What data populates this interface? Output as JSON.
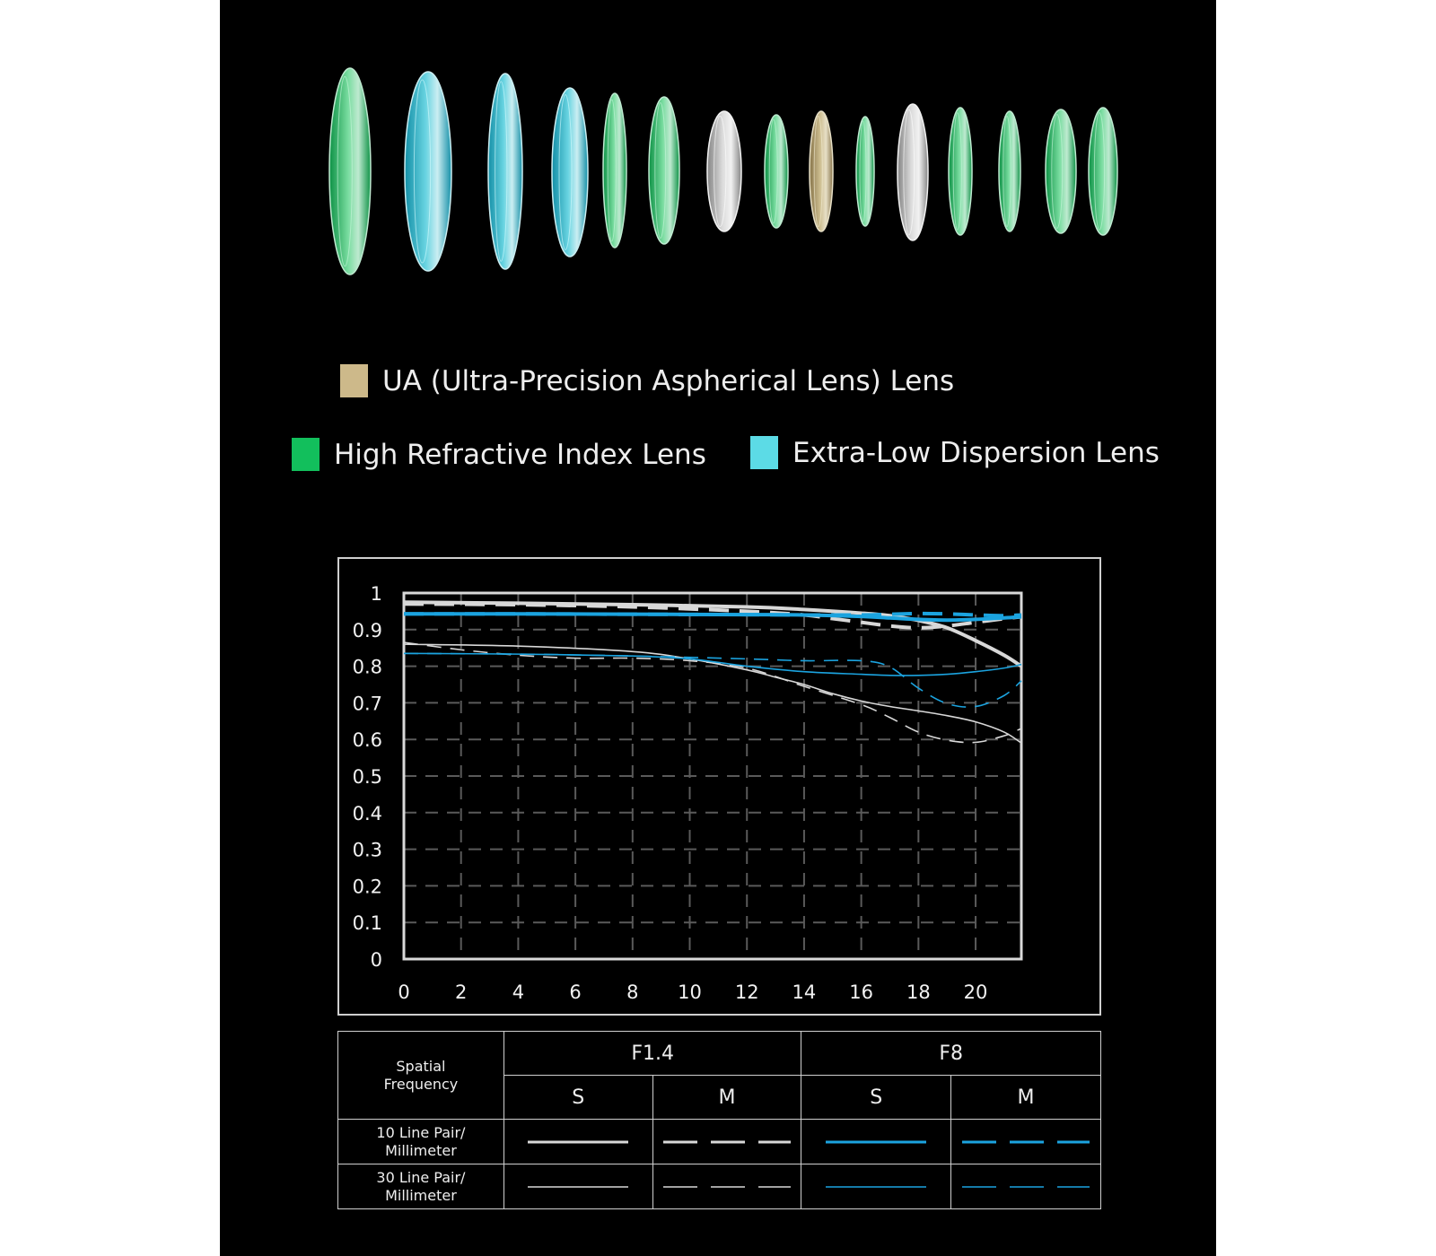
{
  "legend": {
    "ua": {
      "label": "UA (Ultra-Precision Aspherical Lens) Lens",
      "color": "#cdb98a"
    },
    "high_refractive": {
      "label": "High Refractive Index Lens",
      "color": "#12bf5c"
    },
    "extra_low": {
      "label": "Extra-Low Dispersion Lens",
      "color": "#5cdbe6"
    }
  },
  "lens_elements": [
    "high-refractive",
    "extra-low-dispersion",
    "extra-low-dispersion",
    "extra-low-dispersion",
    "high-refractive",
    "high-refractive",
    "standard",
    "high-refractive",
    "ua",
    "high-refractive",
    "standard",
    "high-refractive",
    "high-refractive",
    "high-refractive",
    "high-refractive"
  ],
  "chart_data": {
    "type": "line",
    "xlim": [
      0,
      21.6
    ],
    "ylim": [
      0,
      1
    ],
    "x_ticks": [
      "0",
      "2",
      "4",
      "6",
      "8",
      "10",
      "12",
      "14",
      "16",
      "18",
      "20"
    ],
    "y_ticks": [
      "0",
      "0.1",
      "0.2",
      "0.3",
      "0.4",
      "0.5",
      "0.6",
      "0.7",
      "0.8",
      "0.9",
      "1"
    ],
    "grid": true,
    "series": [
      {
        "aperture": "F1.4",
        "type": "S",
        "frequency": "10 Line Pair/ Millimeter",
        "color": "#d8d8d8",
        "dashed": false,
        "thick": true,
        "points": [
          [
            0,
            0.975
          ],
          [
            4,
            0.972
          ],
          [
            8,
            0.968
          ],
          [
            12,
            0.962
          ],
          [
            14,
            0.955
          ],
          [
            16,
            0.945
          ],
          [
            17,
            0.938
          ],
          [
            18,
            0.925
          ],
          [
            19,
            0.905
          ],
          [
            20,
            0.87
          ],
          [
            21,
            0.83
          ],
          [
            21.6,
            0.8
          ]
        ]
      },
      {
        "aperture": "F1.4",
        "type": "M",
        "frequency": "10 Line Pair/ Millimeter",
        "color": "#d8d8d8",
        "dashed": true,
        "thick": true,
        "points": [
          [
            0,
            0.97
          ],
          [
            4,
            0.968
          ],
          [
            8,
            0.962
          ],
          [
            12,
            0.95
          ],
          [
            14,
            0.94
          ],
          [
            15,
            0.93
          ],
          [
            16,
            0.92
          ],
          [
            17,
            0.91
          ],
          [
            18,
            0.905
          ],
          [
            19,
            0.91
          ],
          [
            20,
            0.92
          ],
          [
            21,
            0.93
          ],
          [
            21.6,
            0.935
          ]
        ]
      },
      {
        "aperture": "F8",
        "type": "S",
        "frequency": "10 Line Pair/ Millimeter",
        "color": "#1ba3df",
        "dashed": false,
        "thick": true,
        "points": [
          [
            0,
            0.943
          ],
          [
            4,
            0.943
          ],
          [
            8,
            0.942
          ],
          [
            12,
            0.941
          ],
          [
            14,
            0.94
          ],
          [
            16,
            0.936
          ],
          [
            17,
            0.932
          ],
          [
            18,
            0.928
          ],
          [
            19,
            0.926
          ],
          [
            20,
            0.928
          ],
          [
            21,
            0.932
          ],
          [
            21.6,
            0.935
          ]
        ]
      },
      {
        "aperture": "F8",
        "type": "M",
        "frequency": "10 Line Pair/ Millimeter",
        "color": "#1ba3df",
        "dashed": true,
        "thick": true,
        "points": [
          [
            0,
            0.943
          ],
          [
            4,
            0.943
          ],
          [
            8,
            0.942
          ],
          [
            12,
            0.941
          ],
          [
            14,
            0.94
          ],
          [
            16,
            0.94
          ],
          [
            17,
            0.942
          ],
          [
            18,
            0.944
          ],
          [
            19,
            0.943
          ],
          [
            20,
            0.94
          ],
          [
            21,
            0.938
          ],
          [
            21.6,
            0.94
          ]
        ]
      },
      {
        "aperture": "F1.4",
        "type": "S",
        "frequency": "30 Line Pair/ Millimeter",
        "color": "#d8d8d8",
        "dashed": false,
        "thick": false,
        "points": [
          [
            0,
            0.86
          ],
          [
            4,
            0.855
          ],
          [
            8,
            0.84
          ],
          [
            10,
            0.82
          ],
          [
            12,
            0.79
          ],
          [
            13,
            0.77
          ],
          [
            14,
            0.75
          ],
          [
            15,
            0.725
          ],
          [
            16,
            0.705
          ],
          [
            17,
            0.69
          ],
          [
            18,
            0.678
          ],
          [
            19,
            0.665
          ],
          [
            20,
            0.648
          ],
          [
            21,
            0.62
          ],
          [
            21.6,
            0.59
          ]
        ]
      },
      {
        "aperture": "F1.4",
        "type": "M",
        "frequency": "30 Line Pair/ Millimeter",
        "color": "#d8d8d8",
        "dashed": true,
        "thick": false,
        "points": [
          [
            0,
            0.865
          ],
          [
            2,
            0.845
          ],
          [
            4,
            0.83
          ],
          [
            6,
            0.822
          ],
          [
            8,
            0.822
          ],
          [
            10,
            0.815
          ],
          [
            12,
            0.795
          ],
          [
            14,
            0.745
          ],
          [
            16,
            0.695
          ],
          [
            17,
            0.66
          ],
          [
            18,
            0.62
          ],
          [
            19,
            0.598
          ],
          [
            20,
            0.592
          ],
          [
            21,
            0.61
          ],
          [
            21.6,
            0.63
          ]
        ]
      },
      {
        "aperture": "F8",
        "type": "S",
        "frequency": "30 Line Pair/ Millimeter",
        "color": "#1ba3df",
        "dashed": false,
        "thick": false,
        "points": [
          [
            0,
            0.835
          ],
          [
            4,
            0.833
          ],
          [
            8,
            0.828
          ],
          [
            10,
            0.82
          ],
          [
            12,
            0.8
          ],
          [
            14,
            0.785
          ],
          [
            16,
            0.778
          ],
          [
            17,
            0.775
          ],
          [
            18,
            0.775
          ],
          [
            19,
            0.778
          ],
          [
            20,
            0.785
          ],
          [
            21,
            0.795
          ],
          [
            21.6,
            0.805
          ]
        ]
      },
      {
        "aperture": "F8",
        "type": "M",
        "frequency": "30 Line Pair/ Millimeter",
        "color": "#1ba3df",
        "dashed": true,
        "thick": false,
        "points": [
          [
            0,
            0.835
          ],
          [
            4,
            0.833
          ],
          [
            8,
            0.828
          ],
          [
            12,
            0.82
          ],
          [
            14,
            0.815
          ],
          [
            16,
            0.815
          ],
          [
            17,
            0.798
          ],
          [
            18,
            0.74
          ],
          [
            19,
            0.698
          ],
          [
            20,
            0.69
          ],
          [
            21,
            0.72
          ],
          [
            21.6,
            0.76
          ]
        ]
      }
    ]
  },
  "table": {
    "spatial_frequency_label": "Spatial Frequency",
    "aperture_f14": "F1.4",
    "aperture_f8": "F8",
    "col_s": "S",
    "col_m": "M",
    "row_10": "10 Line Pair/ Millimeter",
    "row_30": "30 Line Pair/ Millimeter"
  }
}
